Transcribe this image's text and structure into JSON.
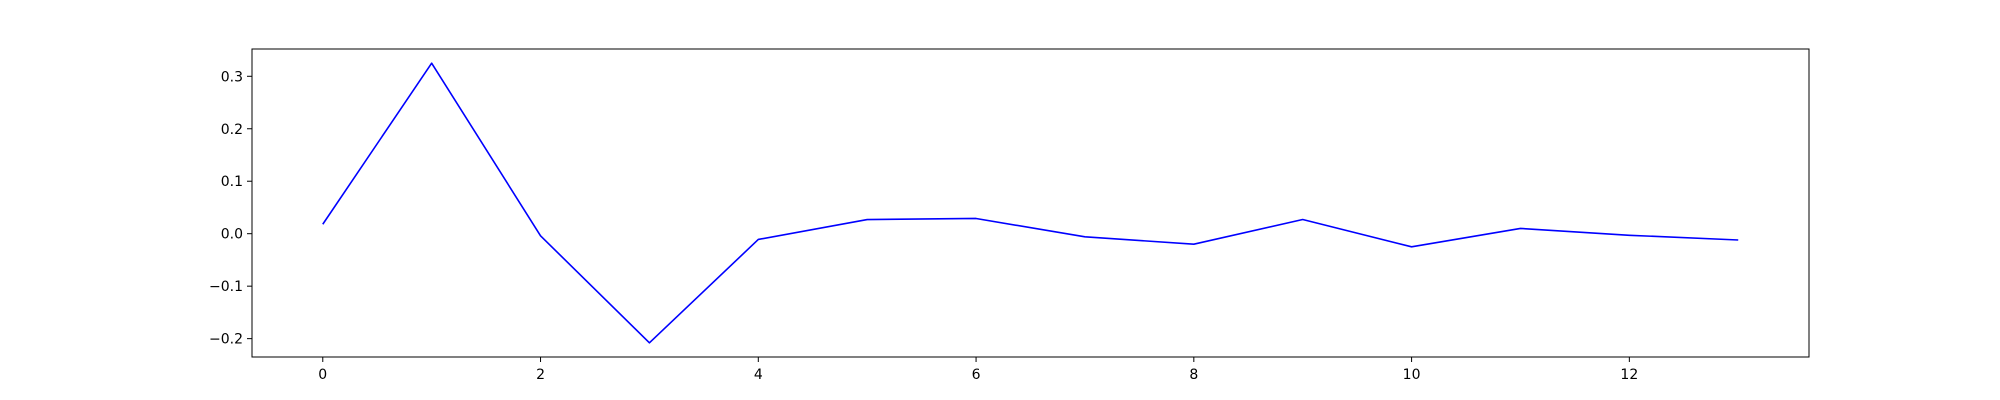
{
  "chart_data": {
    "type": "line",
    "title": "",
    "xlabel": "",
    "ylabel": "",
    "xlim": [
      -0.65,
      13.65
    ],
    "ylim": [
      -0.235,
      0.352
    ],
    "grid": false,
    "legend": "none",
    "x": [
      0,
      1,
      2,
      3,
      4,
      5,
      6,
      7,
      8,
      9,
      10,
      11,
      12,
      13
    ],
    "series": [
      {
        "color": "#0000ff",
        "values": [
          0.018,
          0.325,
          -0.004,
          -0.208,
          -0.011,
          0.027,
          0.029,
          -0.006,
          -0.02,
          0.027,
          -0.025,
          0.01,
          -0.003,
          -0.012
        ]
      }
    ],
    "x_ticks": [
      0,
      2,
      4,
      6,
      8,
      10,
      12
    ],
    "x_tick_labels": [
      "0",
      "2",
      "4",
      "6",
      "8",
      "10",
      "12"
    ],
    "y_ticks": [
      0.3,
      0.2,
      0.1,
      0.0,
      -0.1,
      -0.2
    ],
    "y_tick_labels": [
      "0.3",
      "0.2",
      "0.1",
      "0.0",
      "−0.1",
      "−0.2"
    ]
  }
}
